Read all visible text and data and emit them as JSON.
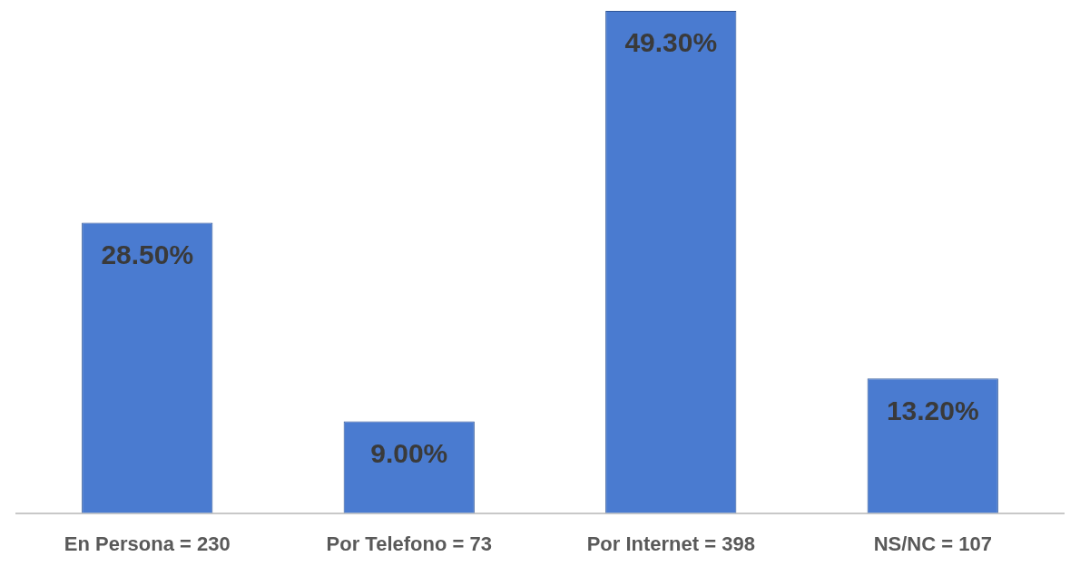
{
  "chart_data": {
    "type": "bar",
    "categories": [
      "En Persona = 230",
      "Por Telefono = 73",
      "Por Internet = 398",
      "NS/NC = 107"
    ],
    "values": [
      28.5,
      9.0,
      49.3,
      13.2
    ],
    "value_labels": [
      "28.50%",
      "9.00%",
      "49.30%",
      "13.20%"
    ],
    "color": "#4a7bd0",
    "grid": false,
    "legend": false
  }
}
